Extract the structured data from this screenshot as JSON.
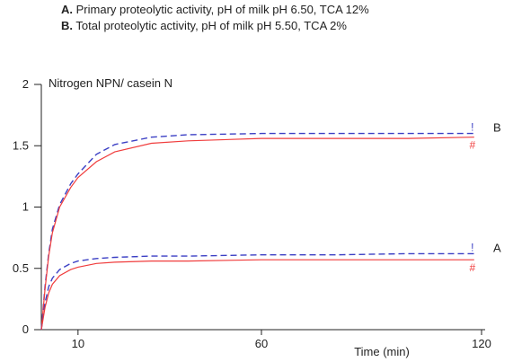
{
  "legend": [
    {
      "key": "A.",
      "text": "Primary proteolytic activity, pH of milk pH 6.50, TCA 12%"
    },
    {
      "key": "B.",
      "text": "Total proteolytic activity, pH of milk pH 5.50, TCA 2%"
    }
  ],
  "chart_data": {
    "type": "line",
    "ylabel": "Nitrogen NPN/ casein N",
    "xlabel": "Time (min)",
    "xlim": [
      0,
      120
    ],
    "ylim": [
      0,
      2
    ],
    "xticks": [
      "10",
      "60",
      "120"
    ],
    "yticks": [
      "0",
      "0.5",
      "1",
      "1.5",
      "2"
    ],
    "grid": false,
    "colors": {
      "dashed": "#3b3fc4",
      "solid": "#f03c3c"
    },
    "markers": {
      "dashed_end": "!",
      "solid_end": "#"
    },
    "series": [
      {
        "name": "B",
        "style": "dashed",
        "color": "#3b3fc4",
        "x": [
          0,
          1,
          2,
          3,
          5,
          8,
          10,
          15,
          20,
          30,
          40,
          60,
          80,
          100,
          118
        ],
        "y": [
          0,
          0.35,
          0.62,
          0.82,
          1.02,
          1.19,
          1.27,
          1.43,
          1.51,
          1.57,
          1.59,
          1.6,
          1.6,
          1.6,
          1.6
        ]
      },
      {
        "name": "B",
        "style": "solid",
        "color": "#f03c3c",
        "x": [
          0,
          1,
          2,
          3,
          5,
          8,
          10,
          15,
          20,
          30,
          40,
          60,
          80,
          100,
          118
        ],
        "y": [
          0,
          0.33,
          0.6,
          0.79,
          1.0,
          1.16,
          1.24,
          1.37,
          1.45,
          1.52,
          1.54,
          1.56,
          1.56,
          1.56,
          1.57
        ]
      },
      {
        "name": "A",
        "style": "dashed",
        "color": "#3b3fc4",
        "x": [
          0,
          1,
          2,
          3,
          5,
          8,
          10,
          15,
          20,
          30,
          40,
          60,
          80,
          100,
          118
        ],
        "y": [
          0,
          0.22,
          0.35,
          0.42,
          0.49,
          0.54,
          0.56,
          0.58,
          0.59,
          0.6,
          0.6,
          0.61,
          0.61,
          0.62,
          0.62
        ]
      },
      {
        "name": "A",
        "style": "solid",
        "color": "#f03c3c",
        "x": [
          0,
          1,
          2,
          3,
          5,
          8,
          10,
          15,
          20,
          30,
          40,
          60,
          80,
          100,
          118
        ],
        "y": [
          0,
          0.18,
          0.3,
          0.37,
          0.44,
          0.49,
          0.51,
          0.54,
          0.55,
          0.56,
          0.56,
          0.57,
          0.57,
          0.57,
          0.57
        ]
      }
    ],
    "curve_labels": [
      "B",
      "A"
    ]
  }
}
